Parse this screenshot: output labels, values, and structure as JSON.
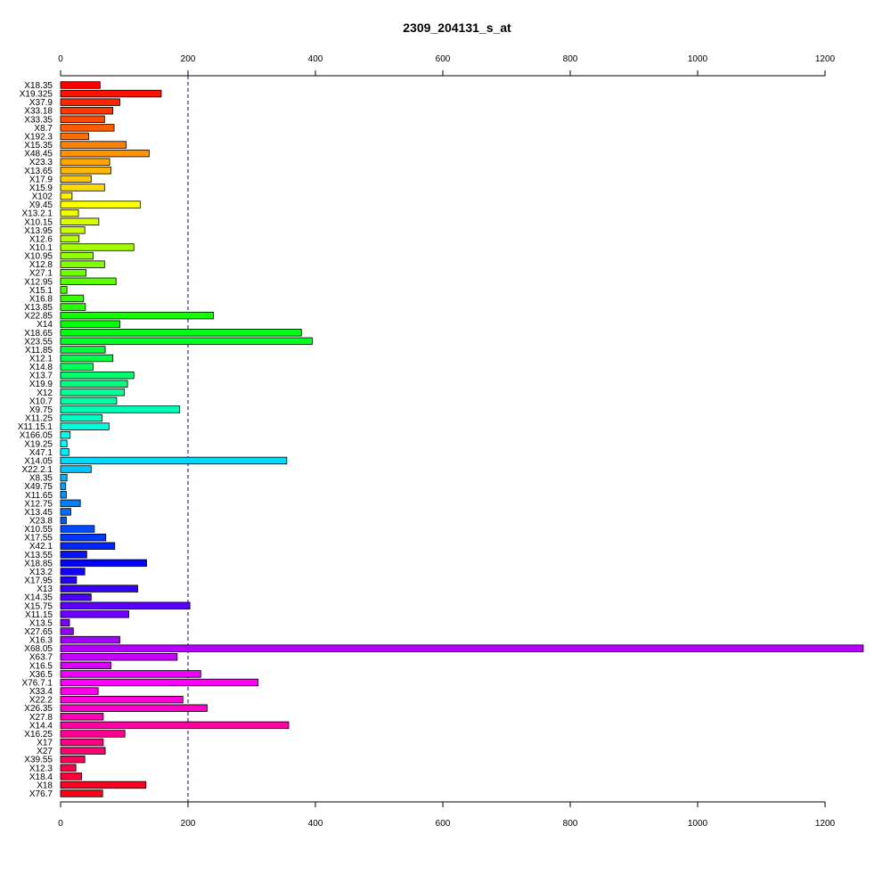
{
  "chart_data": {
    "type": "bar",
    "orientation": "horizontal",
    "title": "2309_204131_s_at",
    "xlabel": "",
    "ylabel": "",
    "xlim": [
      0,
      1260
    ],
    "x_ticks": [
      "0",
      "200",
      "400",
      "600",
      "800",
      "1000",
      "1200"
    ],
    "x_tick_values": [
      0,
      200,
      400,
      600,
      800,
      1000,
      1200
    ],
    "reference_line": 200,
    "grid": false,
    "legend": "none",
    "categories": [
      "X18.35",
      "X19.325",
      "X37.9",
      "X33.18",
      "X33.35",
      "X8.7",
      "X192.3",
      "X15.35",
      "X48.45",
      "X23.3",
      "X13.65",
      "X17.9",
      "X15.9",
      "X102",
      "X9.45",
      "X13.2.1",
      "X10.15",
      "X13.95",
      "X12.6",
      "X10.1",
      "X10.95",
      "X12.8",
      "X27.1",
      "X12.95",
      "X15.1",
      "X16.8",
      "X13.85",
      "X22.85",
      "X14",
      "X18.65",
      "X23.55",
      "X11.85",
      "X12.1",
      "X14.8",
      "X13.7",
      "X19.9",
      "X12",
      "X10.7",
      "X9.75",
      "X11.25",
      "X11.15.1",
      "X166.05",
      "X19.25",
      "X47.1",
      "X14.05",
      "X22.2.1",
      "X8.35",
      "X49.75",
      "X11.65",
      "X12.75",
      "X13.45",
      "X23.8",
      "X10.55",
      "X17.55",
      "X42.1",
      "X13.55",
      "X18.85",
      "X13.2",
      "X17.95",
      "X13",
      "X14.35",
      "X15.75",
      "X11.15",
      "X13.5",
      "X27.65",
      "X16.3",
      "X68.05",
      "X63.7",
      "X16.5",
      "X36.5",
      "X76.7.1",
      "X33.4",
      "X22.2",
      "X26.35",
      "X27.8",
      "X14.4",
      "X16.25",
      "X17",
      "X27",
      "X39.55",
      "X12.3",
      "X18.4",
      "X18",
      "X76.7"
    ],
    "values": [
      62,
      158,
      93,
      82,
      69,
      84,
      44,
      103,
      139,
      77,
      79,
      48,
      69,
      18,
      125,
      28,
      60,
      38,
      29,
      115,
      51,
      69,
      40,
      87,
      10,
      36,
      39,
      240,
      93,
      378,
      395,
      70,
      82,
      51,
      115,
      105,
      100,
      88,
      187,
      65,
      76,
      15,
      10,
      13,
      355,
      48,
      10,
      8,
      9,
      31,
      16,
      9,
      53,
      71,
      85,
      41,
      135,
      38,
      25,
      121,
      48,
      203,
      107,
      14,
      20,
      93,
      1260,
      183,
      79,
      220,
      310,
      59,
      192,
      230,
      67,
      358,
      101,
      67,
      70,
      38,
      24,
      33,
      134,
      66
    ]
  }
}
